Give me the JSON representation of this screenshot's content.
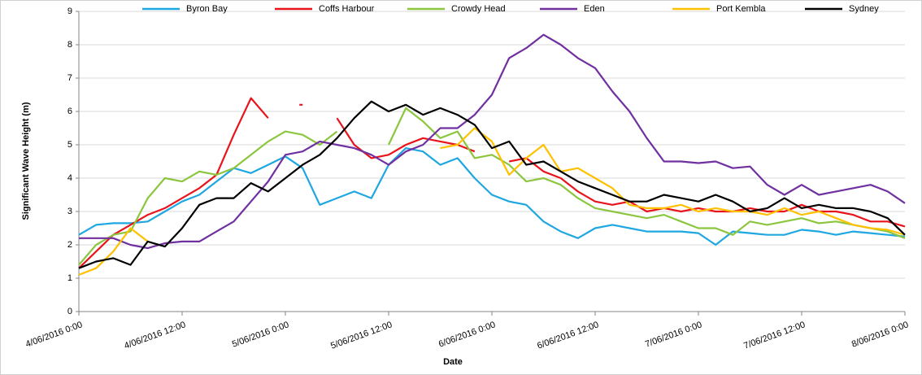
{
  "chart_data": {
    "type": "line",
    "xlabel": "Date",
    "ylabel": "Significant Wave Height (m)",
    "x": [
      "4/06/2016 0:00",
      "4/06/2016 2:00",
      "4/06/2016 4:00",
      "4/06/2016 6:00",
      "4/06/2016 8:00",
      "4/06/2016 10:00",
      "4/06/2016 12:00",
      "4/06/2016 14:00",
      "4/06/2016 16:00",
      "4/06/2016 18:00",
      "4/06/2016 20:00",
      "4/06/2016 22:00",
      "5/06/2016 0:00",
      "5/06/2016 2:00",
      "5/06/2016 4:00",
      "5/06/2016 6:00",
      "5/06/2016 8:00",
      "5/06/2016 10:00",
      "5/06/2016 12:00",
      "5/06/2016 14:00",
      "5/06/2016 16:00",
      "5/06/2016 18:00",
      "5/06/2016 20:00",
      "5/06/2016 22:00",
      "6/06/2016 0:00",
      "6/06/2016 2:00",
      "6/06/2016 4:00",
      "6/06/2016 6:00",
      "6/06/2016 8:00",
      "6/06/2016 10:00",
      "6/06/2016 12:00",
      "6/06/2016 14:00",
      "6/06/2016 16:00",
      "6/06/2016 18:00",
      "6/06/2016 20:00",
      "6/06/2016 22:00",
      "7/06/2016 0:00",
      "7/06/2016 2:00",
      "7/06/2016 4:00",
      "7/06/2016 6:00",
      "7/06/2016 8:00",
      "7/06/2016 10:00",
      "7/06/2016 12:00",
      "7/06/2016 14:00",
      "7/06/2016 16:00",
      "7/06/2016 18:00",
      "7/06/2016 20:00",
      "7/06/2016 22:00",
      "8/06/2016 0:00"
    ],
    "xticks": [
      "4/06/2016 0:00",
      "4/06/2016 12:00",
      "5/06/2016 0:00",
      "5/06/2016 12:00",
      "6/06/2016 0:00",
      "6/06/2016 12:00",
      "7/06/2016 0:00",
      "7/06/2016 12:00",
      "8/06/2016 0:00"
    ],
    "ylim": [
      0,
      9
    ],
    "yticks": [
      0,
      1,
      2,
      3,
      4,
      5,
      6,
      7,
      8,
      9
    ],
    "grid": true,
    "legend": "top",
    "series": [
      {
        "name": "Byron Bay",
        "color": "#1ea7e0",
        "values": [
          2.3,
          2.6,
          2.65,
          2.65,
          2.7,
          3.0,
          3.3,
          3.5,
          3.9,
          4.3,
          4.15,
          4.4,
          4.65,
          4.3,
          3.2,
          3.4,
          3.6,
          3.4,
          4.4,
          4.9,
          4.8,
          4.4,
          4.6,
          4.0,
          3.5,
          3.3,
          3.2,
          2.7,
          2.4,
          2.2,
          2.5,
          2.6,
          2.5,
          2.4,
          2.4,
          2.4,
          2.35,
          2.0,
          2.4,
          2.35,
          2.3,
          2.3,
          2.45,
          2.4,
          2.3,
          2.4,
          2.35,
          2.3,
          2.25
        ]
      },
      {
        "name": "Coffs Harbour",
        "color": "#e8141c",
        "values": [
          1.3,
          1.8,
          2.3,
          2.6,
          2.9,
          3.1,
          3.4,
          3.7,
          4.1,
          5.3,
          6.4,
          5.8,
          null,
          6.2,
          null,
          5.8,
          5.0,
          4.6,
          4.7,
          5.0,
          5.2,
          5.1,
          5.0,
          4.8,
          null,
          4.5,
          4.6,
          4.2,
          4.0,
          3.6,
          3.3,
          3.2,
          3.3,
          3.0,
          3.1,
          3.0,
          3.1,
          3.0,
          3.0,
          3.1,
          3.0,
          3.0,
          3.2,
          3.0,
          3.0,
          2.9,
          2.7,
          2.7,
          2.55
        ]
      },
      {
        "name": "Crowdy Head",
        "color": "#8cc63f",
        "values": [
          1.4,
          2.0,
          2.3,
          2.4,
          3.4,
          4.0,
          3.9,
          4.2,
          4.1,
          4.3,
          4.7,
          5.1,
          5.4,
          5.3,
          5.0,
          5.4,
          null,
          null,
          5.0,
          6.1,
          5.7,
          5.2,
          5.4,
          4.6,
          4.7,
          4.4,
          3.9,
          4.0,
          3.8,
          3.4,
          3.1,
          3.0,
          2.9,
          2.8,
          2.9,
          2.7,
          2.5,
          2.5,
          2.3,
          2.7,
          2.6,
          2.7,
          2.8,
          2.65,
          2.7,
          2.6,
          2.5,
          2.4,
          2.2
        ]
      },
      {
        "name": "Eden",
        "color": "#7030a0",
        "values": [
          2.2,
          2.2,
          2.2,
          2.0,
          1.9,
          2.05,
          2.1,
          2.1,
          2.4,
          2.7,
          3.3,
          3.9,
          4.7,
          4.8,
          5.1,
          5.0,
          4.9,
          4.7,
          4.4,
          4.8,
          5.0,
          5.5,
          5.5,
          5.9,
          6.5,
          7.6,
          7.9,
          8.3,
          8.0,
          7.6,
          7.3,
          6.6,
          6.0,
          5.2,
          4.5,
          4.5,
          4.45,
          4.5,
          4.3,
          4.35,
          3.8,
          3.5,
          3.8,
          3.5,
          3.6,
          3.7,
          3.8,
          3.6,
          3.25
        ]
      },
      {
        "name": "Port Kembla",
        "color": "#ffc000",
        "values": [
          1.1,
          1.3,
          1.8,
          2.5,
          2.1,
          null,
          null,
          null,
          null,
          null,
          null,
          null,
          null,
          null,
          null,
          null,
          null,
          null,
          null,
          null,
          null,
          4.9,
          5.0,
          5.5,
          5.1,
          4.1,
          4.6,
          5.0,
          4.2,
          4.3,
          4.0,
          3.7,
          3.2,
          3.1,
          3.1,
          3.2,
          3.0,
          3.1,
          3.0,
          3.0,
          2.9,
          3.1,
          2.9,
          3.0,
          2.8,
          2.6,
          2.5,
          2.45,
          2.3
        ]
      },
      {
        "name": "Sydney",
        "color": "#000000",
        "values": [
          1.3,
          1.5,
          1.6,
          1.4,
          2.1,
          1.95,
          2.5,
          3.2,
          3.4,
          3.4,
          3.85,
          3.6,
          4.0,
          4.4,
          4.7,
          5.2,
          5.8,
          6.3,
          6.0,
          6.2,
          5.9,
          6.1,
          5.9,
          5.6,
          4.9,
          5.1,
          4.4,
          4.5,
          4.2,
          3.9,
          3.7,
          3.5,
          3.3,
          3.3,
          3.5,
          3.4,
          3.3,
          3.5,
          3.3,
          3.0,
          3.1,
          3.4,
          3.1,
          3.2,
          3.1,
          3.1,
          3.0,
          2.8,
          2.3
        ]
      }
    ]
  }
}
